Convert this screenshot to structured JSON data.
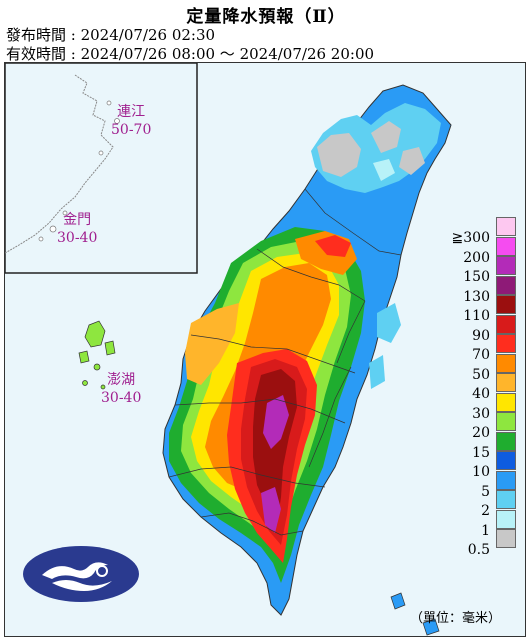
{
  "title": "定量降水預報（Ⅱ）",
  "issue_time": "發布時間 : 2024/07/26 02:30",
  "valid_time": "有效時間 : 2024/07/26 08:00 ～ 2024/07/26 20:00",
  "islands": {
    "lienchiang": {
      "name": "連江",
      "range": "50-70"
    },
    "kinmen": {
      "name": "金門",
      "range": "30-40"
    },
    "penghu": {
      "name": "澎湖",
      "range": "30-40"
    }
  },
  "unit": "（單位：毫米）",
  "legend": {
    "items": [
      {
        "label": "≧300",
        "color": "#fdc8f0"
      },
      {
        "label": "200",
        "color": "#f54cf0"
      },
      {
        "label": "150",
        "color": "#b32bb8"
      },
      {
        "label": "130",
        "color": "#8e1a77"
      },
      {
        "label": "110",
        "color": "#9b0f0f"
      },
      {
        "label": "90",
        "color": "#d81b1b"
      },
      {
        "label": "70",
        "color": "#ff2d1e"
      },
      {
        "label": "50",
        "color": "#ff8a00"
      },
      {
        "label": "40",
        "color": "#ffb52b"
      },
      {
        "label": "30",
        "color": "#ffe600"
      },
      {
        "label": "20",
        "color": "#8ee63f"
      },
      {
        "label": "15",
        "color": "#1fad2f"
      },
      {
        "label": "10",
        "color": "#0e5ce0"
      },
      {
        "label": "5",
        "color": "#2a9bf5"
      },
      {
        "label": "2",
        "color": "#5fd0f2"
      },
      {
        "label": "1",
        "color": "#b8f2f8"
      },
      {
        "label": "0.5",
        "color": "#c8c8c8"
      }
    ]
  },
  "logo": {
    "icon": "cwa-logo-icon"
  }
}
